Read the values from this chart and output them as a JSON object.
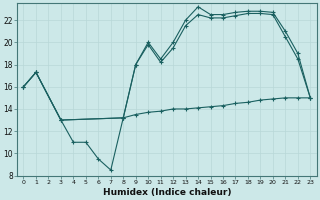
{
  "xlabel": "Humidex (Indice chaleur)",
  "background_color": "#cce8e8",
  "grid_color": "#aad4d4",
  "line_color": "#1a6060",
  "xlim": [
    -0.5,
    23.5
  ],
  "ylim": [
    8,
    23.5
  ],
  "yticks": [
    8,
    10,
    12,
    14,
    16,
    18,
    20,
    22
  ],
  "xticks": [
    0,
    1,
    2,
    3,
    4,
    5,
    6,
    7,
    8,
    9,
    10,
    11,
    12,
    13,
    14,
    15,
    16,
    17,
    18,
    19,
    20,
    21,
    22,
    23
  ],
  "series": [
    {
      "x": [
        0,
        1,
        3,
        4,
        5,
        6,
        7,
        8,
        9,
        10,
        11,
        12,
        13,
        14,
        15,
        16,
        17,
        18,
        19,
        20,
        21,
        22,
        23
      ],
      "y": [
        16,
        17.3,
        13,
        11,
        11,
        9.5,
        8.5,
        13.2,
        13.5,
        13.7,
        13.8,
        14.0,
        14.0,
        14.1,
        14.2,
        14.3,
        14.5,
        14.6,
        14.8,
        14.9,
        15.0,
        15.0,
        15.0
      ]
    },
    {
      "x": [
        0,
        1,
        3,
        8,
        9,
        10,
        11,
        12,
        13,
        14,
        15,
        16,
        17,
        18,
        19,
        20,
        21,
        22,
        23
      ],
      "y": [
        16,
        17.3,
        13,
        13.2,
        18,
        20.0,
        18.5,
        20.0,
        22.0,
        23.2,
        22.5,
        22.5,
        22.7,
        22.8,
        22.8,
        22.7,
        21.0,
        19.0,
        15.0
      ]
    },
    {
      "x": [
        0,
        1,
        3,
        8,
        9,
        10,
        11,
        12,
        13,
        14,
        15,
        16,
        17,
        18,
        19,
        20,
        21,
        22,
        23
      ],
      "y": [
        16,
        17.3,
        13,
        13.2,
        18,
        19.8,
        18.2,
        19.5,
        21.5,
        22.5,
        22.2,
        22.2,
        22.4,
        22.6,
        22.6,
        22.5,
        20.5,
        18.5,
        15.0
      ]
    }
  ]
}
